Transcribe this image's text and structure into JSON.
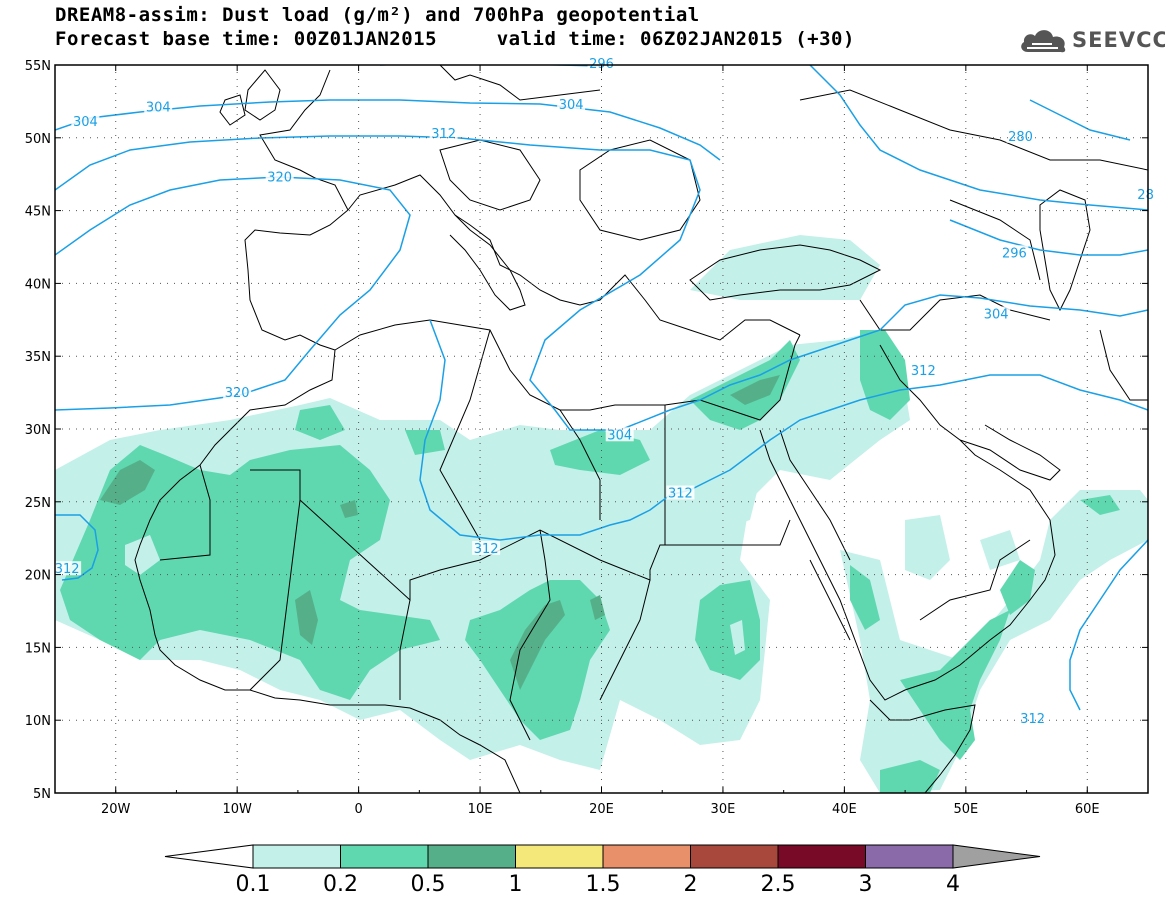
{
  "title": {
    "line1": "DREAM8-assim: Dust load (g/m²) and 700hPa geopotential",
    "line2": "Forecast base time: 00Z01JAN2015     valid time: 06Z02JAN2015 (+30)"
  },
  "logo": {
    "text": "SEEVCCC",
    "icon": "cloud-icon"
  },
  "colors": {
    "contour": "#1aa0e6",
    "coast": "#000000",
    "level1": "#c4f0ea",
    "level2": "#5fd8b0",
    "level3": "#55b08a"
  },
  "map": {
    "lon_range": [
      -25,
      65
    ],
    "lat_range": [
      5,
      55
    ],
    "lat_ticks": [
      "55N",
      "50N",
      "45N",
      "40N",
      "35N",
      "30N",
      "25N",
      "20N",
      "15N",
      "10N",
      "5N"
    ],
    "lon_ticks": [
      "20W",
      "10W",
      "0",
      "10E",
      "20E",
      "30E",
      "40E",
      "50E",
      "60E"
    ],
    "contour_labels": [
      {
        "text": "304",
        "lon": -22.5,
        "lat": 51.0
      },
      {
        "text": "304",
        "lon": -16.5,
        "lat": 52.0
      },
      {
        "text": "304",
        "lon": 17.5,
        "lat": 52.2
      },
      {
        "text": "296",
        "lon": 20.0,
        "lat": 55.0
      },
      {
        "text": "312",
        "lon": 7.0,
        "lat": 50.2
      },
      {
        "text": "320",
        "lon": -6.5,
        "lat": 47.2
      },
      {
        "text": "320",
        "lon": -10.0,
        "lat": 32.4
      },
      {
        "text": "304",
        "lon": 21.5,
        "lat": 29.5
      },
      {
        "text": "312",
        "lon": 26.5,
        "lat": 25.5
      },
      {
        "text": "312",
        "lon": 10.5,
        "lat": 21.7
      },
      {
        "text": "312",
        "lon": -24.0,
        "lat": 20.3
      },
      {
        "text": "280",
        "lon": 54.5,
        "lat": 50.0
      },
      {
        "text": "296",
        "lon": 54.0,
        "lat": 42.0
      },
      {
        "text": "304",
        "lon": 52.5,
        "lat": 37.8
      },
      {
        "text": "312",
        "lon": 46.5,
        "lat": 33.9
      },
      {
        "text": "312",
        "lon": 55.5,
        "lat": 10.0
      },
      {
        "text": "28",
        "lon": 64.8,
        "lat": 46.0
      }
    ]
  },
  "colorbar": {
    "labels": [
      "0.1",
      "0.2",
      "0.5",
      "1",
      "1.5",
      "2",
      "2.5",
      "3",
      "4"
    ],
    "colors": [
      "#ffffff",
      "#c4f0ea",
      "#5fd8b0",
      "#55b08a",
      "#f5e87a",
      "#e8906a",
      "#a8483c",
      "#780a28",
      "#8a6aa8",
      "#a0a0a0"
    ]
  }
}
